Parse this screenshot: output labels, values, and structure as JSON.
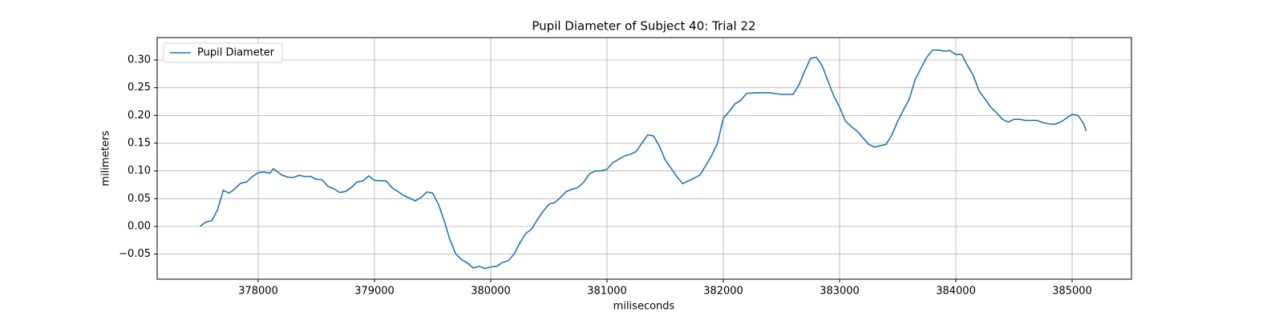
{
  "chart_data": {
    "type": "line",
    "title": "Pupil Diameter of Subject 40: Trial 22",
    "xlabel": "miliseconds",
    "ylabel": "milimeters",
    "x": [
      377500,
      377550,
      377600,
      377650,
      377700,
      377750,
      377800,
      377850,
      377900,
      377950,
      378000,
      378050,
      378100,
      378130,
      378200,
      378250,
      378300,
      378350,
      378400,
      378450,
      378500,
      378550,
      378600,
      378650,
      378700,
      378750,
      378800,
      378850,
      378900,
      378950,
      379000,
      379100,
      379150,
      379200,
      379250,
      379300,
      379350,
      379400,
      379450,
      379500,
      379550,
      379600,
      379650,
      379700,
      379750,
      379800,
      379850,
      379900,
      379950,
      380000,
      380050,
      380100,
      380150,
      380200,
      380250,
      380300,
      380350,
      380400,
      380450,
      380500,
      380550,
      380600,
      380650,
      380700,
      380750,
      380800,
      380850,
      380900,
      380950,
      381000,
      381050,
      381100,
      381150,
      381200,
      381250,
      381300,
      381350,
      381400,
      381450,
      381500,
      381550,
      381600,
      381650,
      381700,
      381750,
      381800,
      381850,
      381900,
      381950,
      382000,
      382050,
      382100,
      382150,
      382200,
      382300,
      382400,
      382500,
      382600,
      382650,
      382700,
      382750,
      382800,
      382850,
      382900,
      382950,
      383000,
      383050,
      383100,
      383150,
      383200,
      383250,
      383300,
      383400,
      383450,
      383500,
      383550,
      383600,
      383650,
      383700,
      383750,
      383800,
      383850,
      383900,
      383950,
      384000,
      384050,
      384100,
      384150,
      384200,
      384250,
      384300,
      384350,
      384400,
      384450,
      384500,
      384550,
      384600,
      384650,
      384700,
      384750,
      384800,
      384850,
      384900,
      384950,
      385000,
      385050,
      385100,
      385120
    ],
    "series": [
      {
        "name": "Pupil Diameter",
        "color": "#1f77b4",
        "values": [
          0.0,
          0.008,
          0.01,
          0.03,
          0.065,
          0.06,
          0.068,
          0.078,
          0.08,
          0.09,
          0.097,
          0.098,
          0.096,
          0.104,
          0.093,
          0.089,
          0.088,
          0.092,
          0.09,
          0.09,
          0.085,
          0.084,
          0.072,
          0.068,
          0.061,
          0.063,
          0.07,
          0.08,
          0.082,
          0.091,
          0.083,
          0.082,
          0.07,
          0.063,
          0.056,
          0.051,
          0.046,
          0.052,
          0.062,
          0.06,
          0.04,
          0.01,
          -0.025,
          -0.05,
          -0.06,
          -0.066,
          -0.075,
          -0.072,
          -0.076,
          -0.073,
          -0.072,
          -0.065,
          -0.062,
          -0.05,
          -0.03,
          -0.013,
          -0.005,
          0.012,
          0.027,
          0.04,
          0.043,
          0.052,
          0.063,
          0.067,
          0.07,
          0.08,
          0.095,
          0.1,
          0.1,
          0.103,
          0.115,
          0.121,
          0.127,
          0.13,
          0.135,
          0.15,
          0.165,
          0.163,
          0.145,
          0.12,
          0.105,
          0.09,
          0.077,
          0.082,
          0.087,
          0.093,
          0.11,
          0.128,
          0.15,
          0.195,
          0.207,
          0.221,
          0.227,
          0.24,
          0.241,
          0.241,
          0.238,
          0.238,
          0.255,
          0.28,
          0.303,
          0.305,
          0.29,
          0.262,
          0.235,
          0.215,
          0.19,
          0.18,
          0.172,
          0.16,
          0.148,
          0.143,
          0.148,
          0.165,
          0.19,
          0.21,
          0.23,
          0.265,
          0.285,
          0.305,
          0.318,
          0.318,
          0.316,
          0.317,
          0.31,
          0.31,
          0.29,
          0.272,
          0.244,
          0.23,
          0.215,
          0.205,
          0.193,
          0.188,
          0.193,
          0.193,
          0.191,
          0.191,
          0.191,
          0.187,
          0.185,
          0.184,
          0.188,
          0.195,
          0.202,
          0.2,
          0.185,
          0.172
        ]
      }
    ],
    "xlim": [
      377131,
      385510
    ],
    "ylim": [
      -0.0952,
      0.3404
    ],
    "xticks": [
      378000,
      379000,
      380000,
      381000,
      382000,
      383000,
      384000,
      385000
    ],
    "yticks": [
      {
        "value": -0.05,
        "label": "−0.05"
      },
      {
        "value": 0,
        "label": "0.00"
      },
      {
        "value": 0.05,
        "label": "0.05"
      },
      {
        "value": 0.1,
        "label": "0.10"
      },
      {
        "value": 0.15,
        "label": "0.15"
      },
      {
        "value": 0.2,
        "label": "0.20"
      },
      {
        "value": 0.25,
        "label": "0.25"
      },
      {
        "value": 0.3,
        "label": "0.30"
      }
    ],
    "grid": true,
    "legend": "upper left"
  }
}
